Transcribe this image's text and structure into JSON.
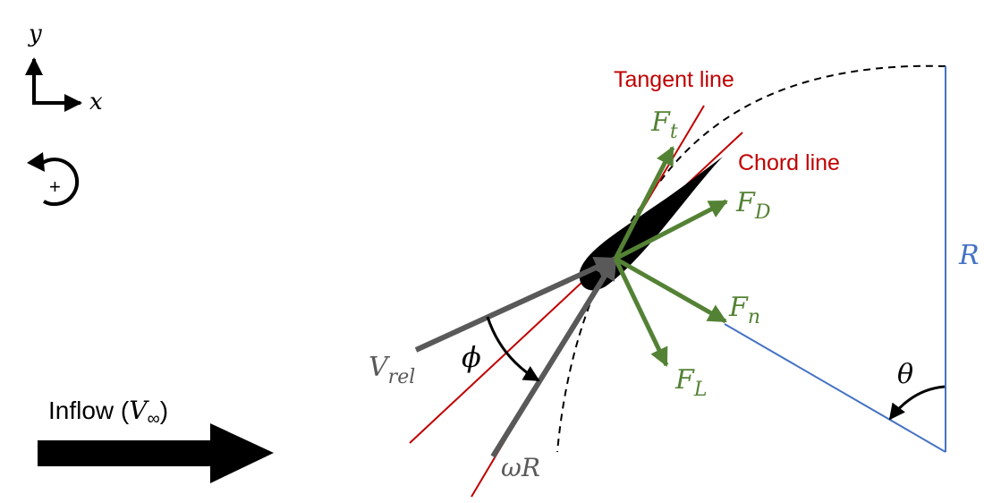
{
  "labels": {
    "axis_y": "y",
    "axis_x": "x",
    "rotation_sign": "+",
    "inflow_prefix": "Inflow (",
    "inflow_symbol": "V",
    "inflow_subscript": "∞",
    "inflow_suffix": ")",
    "tangent_line": "Tangent line",
    "chord_line": "Chord line",
    "Ft_main": "F",
    "Ft_sub": "t",
    "FD_main": "F",
    "FD_sub": "D",
    "Fn_main": "F",
    "Fn_sub": "n",
    "FL_main": "F",
    "FL_sub": "L",
    "R": "R",
    "theta": "θ",
    "phi": "ϕ",
    "Vrel_main": "V",
    "Vrel_sub": "rel",
    "omegaR": "ωR"
  },
  "colors": {
    "red_line": "#c00000",
    "green_force": "#548235",
    "blue_radius": "#4472c4",
    "gray_vector": "#595959",
    "black": "#000000"
  }
}
